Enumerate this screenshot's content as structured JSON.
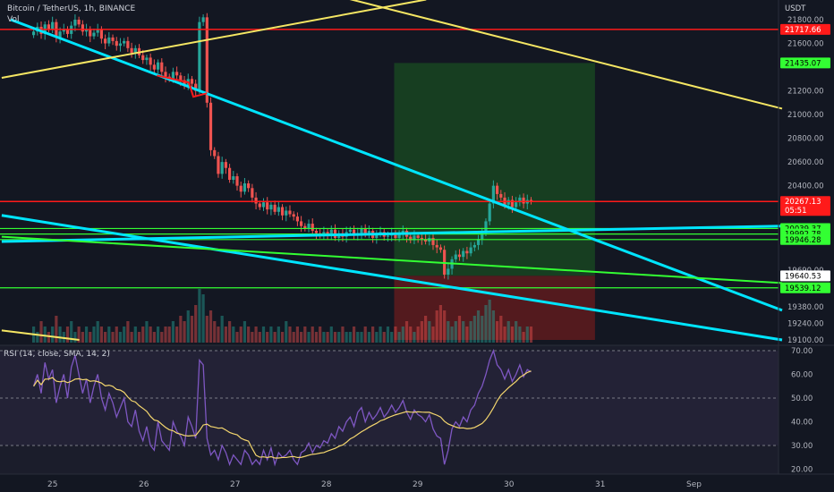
{
  "header": {
    "symbol_line": "Bitcoin / TetherUS, 1h, BINANCE",
    "volume_label": "Vol"
  },
  "rsi_panel": {
    "title": "RSI (14, close, SMA, 14, 2)"
  },
  "colors": {
    "background": "#131722",
    "up_candle": "#26a69a",
    "down_candle": "#ef5350",
    "red_level": "#ff1a1a",
    "green_level": "#33ff33",
    "cyan_trend": "#00e5ff",
    "yellow_trend": "#f5e663",
    "rsi_line": "#7e57c2",
    "rsi_ma": "#f5d76e",
    "profit_zone": "#1b5e20",
    "loss_zone": "#7f1d1d"
  },
  "chart_data": [
    {
      "type": "candlestick",
      "title": "Bitcoin / TetherUS, 1h, BINANCE",
      "y_axis_unit": "USDT",
      "y_ticks": [
        19100,
        19240,
        19380,
        19540,
        19690,
        20400,
        20600,
        20800,
        21000,
        21200,
        21600,
        21800
      ],
      "x_ticks": [
        "25",
        "26",
        "27",
        "28",
        "29",
        "30",
        "31",
        "Sep"
      ],
      "price_labels": [
        {
          "text": "21717.66",
          "value": 21717.66,
          "color": "#ff1a1a"
        },
        {
          "text": "21435.07",
          "value": 21435.07,
          "color": "#33ff33"
        },
        {
          "text": "20267.13",
          "value": 20267.13,
          "color": "#ff1a1a"
        },
        {
          "text": "05:51",
          "value": 20267.13,
          "color": "#ff1a1a"
        },
        {
          "text": "20039.37",
          "value": 20039.37,
          "color": "#33ff33"
        },
        {
          "text": "19992.78",
          "value": 19992.78,
          "color": "#33ff33"
        },
        {
          "text": "19946.28",
          "value": 19946.28,
          "color": "#33ff33"
        },
        {
          "text": "19640.53",
          "value": 19640.53,
          "color": "#ffffff"
        },
        {
          "text": "19539.12",
          "value": 19539.12,
          "color": "#33ff33"
        }
      ],
      "horizontal_levels": [
        21717.66,
        20267.13,
        20039.37,
        19992.78,
        19946.28,
        19539.12
      ],
      "long_position": {
        "entry": 19640.53,
        "target": 21435.07,
        "stop": 19100,
        "start_day": 28.75,
        "end_day": 30.95
      },
      "ohlc_hourly_from_day_24_8": [
        21700,
        21740,
        21680,
        21760,
        21720,
        21780,
        21650,
        21700,
        21720,
        21680,
        21750,
        21800,
        21760,
        21700,
        21720,
        21660,
        21690,
        21720,
        21640,
        21600,
        21650,
        21620,
        21580,
        21600,
        21620,
        21560,
        21520,
        21560,
        21500,
        21460,
        21480,
        21420,
        21380,
        21440,
        21360,
        21320,
        21300,
        21360,
        21330,
        21290,
        21240,
        21300,
        21260,
        21200,
        21780,
        21820,
        21100,
        20700,
        20650,
        20500,
        20600,
        20550,
        20450,
        20480,
        20400,
        20350,
        20420,
        20380,
        20300,
        20250,
        20220,
        20260,
        20200,
        20240,
        20180,
        20220,
        20150,
        20190,
        20160,
        20140,
        20100,
        20060,
        20040,
        20080,
        20020,
        20000,
        19980,
        20010,
        19990,
        20030,
        19960,
        20000,
        19970,
        20010,
        20030,
        19980,
        20000,
        20040,
        19990,
        20020,
        19960,
        19990,
        20010,
        19970,
        19980,
        20000,
        19960,
        19990,
        20020,
        19970,
        19940,
        19980,
        19960,
        19950,
        19930,
        19960,
        19900,
        19880,
        19860,
        19650,
        19700,
        19780,
        19820,
        19800,
        19850,
        19830,
        19880,
        19900,
        19950,
        20000,
        20100,
        20250,
        20400,
        20330,
        20300,
        20240,
        20280,
        20220,
        20260,
        20300,
        20250,
        20280,
        20267
      ],
      "volume_relative_hourly": [
        0.3,
        0.2,
        0.4,
        0.3,
        0.2,
        0.3,
        0.5,
        0.3,
        0.2,
        0.3,
        0.4,
        0.2,
        0.3,
        0.2,
        0.3,
        0.2,
        0.3,
        0.4,
        0.3,
        0.2,
        0.3,
        0.2,
        0.3,
        0.2,
        0.3,
        0.4,
        0.2,
        0.3,
        0.2,
        0.3,
        0.4,
        0.3,
        0.2,
        0.3,
        0.2,
        0.3,
        0.3,
        0.4,
        0.3,
        0.5,
        0.4,
        0.6,
        0.5,
        0.7,
        1.0,
        0.9,
        0.5,
        0.6,
        0.4,
        0.3,
        0.5,
        0.3,
        0.4,
        0.3,
        0.2,
        0.3,
        0.4,
        0.3,
        0.2,
        0.3,
        0.2,
        0.3,
        0.2,
        0.3,
        0.2,
        0.3,
        0.2,
        0.4,
        0.3,
        0.2,
        0.3,
        0.2,
        0.3,
        0.2,
        0.3,
        0.2,
        0.3,
        0.2,
        0.2,
        0.3,
        0.2,
        0.2,
        0.3,
        0.2,
        0.2,
        0.3,
        0.2,
        0.2,
        0.3,
        0.2,
        0.3,
        0.2,
        0.3,
        0.2,
        0.3,
        0.2,
        0.3,
        0.2,
        0.3,
        0.4,
        0.3,
        0.2,
        0.3,
        0.4,
        0.5,
        0.4,
        0.3,
        0.6,
        0.7,
        0.6,
        0.4,
        0.3,
        0.4,
        0.5,
        0.4,
        0.3,
        0.4,
        0.5,
        0.6,
        0.5,
        0.7,
        0.8,
        0.6,
        0.4,
        0.5,
        0.3,
        0.4,
        0.3,
        0.4,
        0.3,
        0.2,
        0.3,
        0.3
      ]
    },
    {
      "type": "line",
      "title": "RSI (14, close, SMA, 14, 2)",
      "y_ticks": [
        20.0,
        30.0,
        40.0,
        50.0,
        60.0,
        70.0
      ],
      "bands": [
        30,
        50,
        70
      ],
      "ylim": [
        17,
        73
      ],
      "rsi_hourly": [
        55,
        60,
        52,
        65,
        58,
        62,
        48,
        55,
        60,
        50,
        63,
        68,
        60,
        52,
        58,
        48,
        55,
        60,
        50,
        45,
        52,
        48,
        42,
        46,
        50,
        40,
        38,
        45,
        36,
        32,
        38,
        30,
        28,
        40,
        32,
        30,
        28,
        40,
        36,
        34,
        30,
        42,
        38,
        33,
        66,
        64,
        33,
        26,
        28,
        24,
        30,
        27,
        22,
        26,
        24,
        22,
        28,
        26,
        22,
        24,
        22,
        28,
        24,
        29,
        22,
        27,
        25,
        26,
        28,
        24,
        22,
        27,
        28,
        31,
        27,
        30,
        29,
        32,
        31,
        35,
        33,
        38,
        36,
        40,
        42,
        38,
        44,
        46,
        40,
        44,
        41,
        43,
        46,
        42,
        44,
        47,
        44,
        46,
        49,
        44,
        41,
        45,
        43,
        42,
        40,
        43,
        37,
        34,
        33,
        22,
        28,
        37,
        40,
        38,
        42,
        40,
        45,
        47,
        52,
        55,
        60,
        66,
        70,
        64,
        62,
        58,
        62,
        57,
        60,
        64,
        59,
        62,
        61
      ]
    }
  ]
}
